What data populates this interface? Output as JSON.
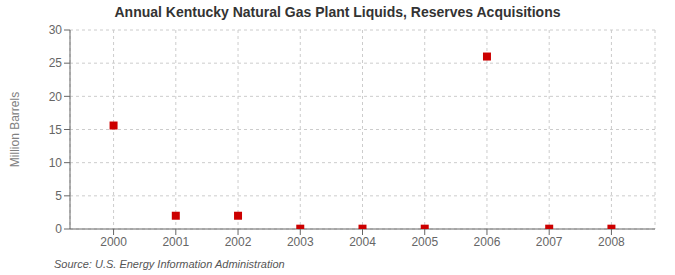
{
  "chart_data": {
    "type": "scatter",
    "title": "Annual Kentucky Natural Gas Plant Liquids, Reserves Acquisitions",
    "ylabel": "Million Barrels",
    "annotations": [
      "Source: U.S. Energy Information Administration"
    ],
    "x": [
      2000,
      2001,
      2002,
      2003,
      2004,
      2005,
      2006,
      2007,
      2008
    ],
    "values": [
      15.6,
      2.0,
      2.0,
      0.05,
      0.05,
      0.05,
      26.0,
      0.05,
      0.05
    ],
    "xlim": [
      1999.3,
      2008.7
    ],
    "xticks": [
      2000,
      2001,
      2002,
      2003,
      2004,
      2005,
      2006,
      2007,
      2008
    ],
    "ylim": [
      0,
      30
    ],
    "yticks": [
      0,
      5,
      10,
      15,
      20,
      25,
      30
    ],
    "color": "#cc0000",
    "marker": "square",
    "grid": true
  }
}
